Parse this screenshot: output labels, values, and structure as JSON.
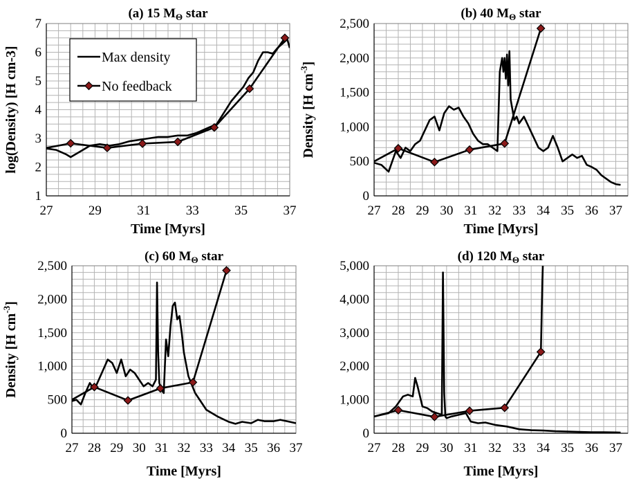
{
  "chart_data": [
    {
      "type": "line",
      "title": "(a) 15 MΘ star",
      "title_main": "(a) 15 M",
      "title_sub": "Θ",
      "title_tail": " star",
      "xlabel": "Time [Myrs]",
      "ylabel": "log(Density) [H cm-3]",
      "xlim": [
        27,
        37
      ],
      "ylim": [
        1,
        7
      ],
      "xticks": [
        "27",
        "29",
        "31",
        "33",
        "35",
        "37"
      ],
      "xtick_values": [
        27,
        29,
        31,
        33,
        35,
        37
      ],
      "yticks": [
        "1",
        "2",
        "3",
        "4",
        "5",
        "6",
        "7"
      ],
      "ytick_values": [
        1,
        2,
        3,
        4,
        5,
        6,
        7
      ],
      "xgrid_step": 0.5,
      "ygrid_step": 0.25,
      "legend": {
        "position": "top-left",
        "entries": [
          "Max density",
          "No feedback"
        ]
      },
      "series": [
        {
          "name": "Max density",
          "x": [
            27.0,
            27.4,
            27.8,
            28.0,
            28.4,
            28.8,
            29.2,
            29.6,
            30.0,
            30.4,
            30.8,
            31.2,
            31.6,
            32.0,
            32.4,
            32.8,
            33.2,
            33.6,
            34.0,
            34.3,
            34.6,
            34.9,
            35.1,
            35.3,
            35.5,
            35.7,
            35.9,
            36.1,
            36.3,
            36.5,
            36.7,
            36.9,
            37.0
          ],
          "y": [
            2.65,
            2.6,
            2.45,
            2.35,
            2.55,
            2.75,
            2.8,
            2.75,
            2.8,
            2.9,
            2.95,
            3.0,
            3.05,
            3.05,
            3.1,
            3.1,
            3.2,
            3.35,
            3.5,
            3.9,
            4.3,
            4.6,
            4.8,
            5.1,
            5.3,
            5.7,
            6.0,
            6.0,
            5.95,
            6.15,
            6.3,
            6.45,
            6.15
          ]
        },
        {
          "name": "No feedback",
          "x": [
            27.0,
            28.0,
            29.5,
            30.95,
            32.4,
            33.9,
            35.35,
            36.8
          ],
          "y": [
            2.67,
            2.83,
            2.67,
            2.82,
            2.88,
            3.38,
            4.73,
            6.5
          ],
          "marker_x": [
            28.0,
            29.5,
            30.95,
            32.4,
            33.9,
            35.35,
            36.8
          ],
          "marker_y": [
            2.83,
            2.67,
            2.82,
            2.88,
            3.38,
            4.73,
            6.5
          ]
        }
      ]
    },
    {
      "type": "line",
      "title": "(b) 40 MΘ star",
      "title_main": "(b) 40 M",
      "title_sub": "Θ",
      "title_tail": " star",
      "xlabel": "Time [Myrs]",
      "ylabel": "Density [H cm-3]",
      "ylabel_main": "Density [H cm",
      "ylabel_sup": "-3",
      "ylabel_tail": "]",
      "xlim": [
        27,
        37.5
      ],
      "ylim": [
        0,
        2500
      ],
      "xticks": [
        "27",
        "28",
        "29",
        "30",
        "31",
        "32",
        "33",
        "34",
        "35",
        "36",
        "37"
      ],
      "xtick_values": [
        27,
        28,
        29,
        30,
        31,
        32,
        33,
        34,
        35,
        36,
        37
      ],
      "yticks": [
        "0",
        "500",
        "1,000",
        "1,500",
        "2,000",
        "2,500"
      ],
      "ytick_values": [
        0,
        500,
        1000,
        1500,
        2000,
        2500
      ],
      "xgrid_step": 0.5,
      "ygrid_step": 100,
      "series": [
        {
          "name": "Max density",
          "x": [
            27.0,
            27.3,
            27.6,
            27.9,
            28.1,
            28.3,
            28.5,
            28.7,
            28.9,
            29.1,
            29.3,
            29.5,
            29.7,
            29.9,
            30.1,
            30.3,
            30.5,
            30.7,
            30.9,
            31.1,
            31.3,
            31.5,
            31.7,
            31.9,
            32.1,
            32.2,
            32.3,
            32.35,
            32.4,
            32.45,
            32.5,
            32.55,
            32.6,
            32.65,
            32.7,
            32.75,
            32.8,
            32.9,
            33.0,
            33.2,
            33.4,
            33.6,
            33.8,
            34.0,
            34.2,
            34.4,
            34.6,
            34.8,
            35.0,
            35.2,
            35.4,
            35.6,
            35.8,
            36.0,
            36.2,
            36.4,
            36.6,
            36.8,
            37.0,
            37.2
          ],
          "y": [
            480,
            450,
            350,
            650,
            550,
            700,
            650,
            750,
            800,
            950,
            1100,
            1150,
            950,
            1200,
            1300,
            1250,
            1280,
            1150,
            1050,
            900,
            800,
            750,
            750,
            700,
            650,
            1800,
            2000,
            1800,
            2000,
            1700,
            2050,
            1600,
            2100,
            1400,
            1300,
            1200,
            1100,
            1150,
            1050,
            1150,
            1000,
            850,
            700,
            650,
            700,
            870,
            700,
            500,
            550,
            600,
            550,
            580,
            450,
            420,
            380,
            300,
            250,
            200,
            170,
            160
          ]
        },
        {
          "name": "No feedback",
          "x": [
            27.0,
            28.0,
            29.5,
            30.95,
            32.4,
            33.9
          ],
          "y": [
            500,
            690,
            490,
            670,
            760,
            2430
          ],
          "marker_x": [
            28.0,
            29.5,
            30.95,
            32.4,
            33.9
          ],
          "marker_y": [
            690,
            490,
            670,
            760,
            2430
          ]
        }
      ]
    },
    {
      "type": "line",
      "title": "(c) 60 MΘ star",
      "title_main": "(c) 60 M",
      "title_sub": "Θ",
      "title_tail": " star",
      "xlabel": "Time [Myrs]",
      "ylabel": "Density [H cm-3]",
      "ylabel_main": "Density [H cm",
      "ylabel_sup": "-3",
      "ylabel_tail": "]",
      "xlim": [
        27,
        37
      ],
      "ylim": [
        0,
        2500
      ],
      "xticks": [
        "27",
        "28",
        "29",
        "30",
        "31",
        "32",
        "33",
        "34",
        "35",
        "36",
        "37"
      ],
      "xtick_values": [
        27,
        28,
        29,
        30,
        31,
        32,
        33,
        34,
        35,
        36,
        37
      ],
      "yticks": [
        "0",
        "500",
        "1,000",
        "1,500",
        "2,000",
        "2,500"
      ],
      "ytick_values": [
        0,
        500,
        1000,
        1500,
        2000,
        2500
      ],
      "xgrid_step": 0.5,
      "ygrid_step": 100,
      "series": [
        {
          "name": "Max density",
          "x": [
            27.0,
            27.2,
            27.4,
            27.6,
            27.8,
            28.0,
            28.2,
            28.4,
            28.6,
            28.8,
            29.0,
            29.2,
            29.4,
            29.6,
            29.8,
            30.0,
            30.2,
            30.4,
            30.6,
            30.75,
            30.8,
            30.85,
            30.9,
            31.0,
            31.1,
            31.2,
            31.3,
            31.4,
            31.5,
            31.6,
            31.7,
            31.8,
            31.9,
            32.0,
            32.2,
            32.5,
            32.8,
            33.0,
            33.5,
            34.0,
            34.3,
            34.6,
            35.0,
            35.3,
            35.6,
            36.0,
            36.3,
            36.6,
            37.0
          ],
          "y": [
            480,
            500,
            430,
            600,
            750,
            650,
            800,
            950,
            1100,
            1050,
            900,
            1100,
            850,
            950,
            900,
            800,
            700,
            750,
            700,
            800,
            2250,
            1200,
            750,
            650,
            600,
            1400,
            1150,
            1600,
            1900,
            1950,
            1700,
            1750,
            1500,
            1200,
            850,
            600,
            450,
            350,
            250,
            170,
            140,
            170,
            150,
            200,
            180,
            180,
            200,
            180,
            150
          ]
        },
        {
          "name": "No feedback",
          "x": [
            27.0,
            28.0,
            29.5,
            30.95,
            32.4,
            33.9
          ],
          "y": [
            500,
            690,
            490,
            670,
            760,
            2430
          ],
          "marker_x": [
            28.0,
            29.5,
            30.95,
            32.4,
            33.9
          ],
          "marker_y": [
            690,
            490,
            670,
            760,
            2430
          ]
        }
      ]
    },
    {
      "type": "line",
      "title": "(d) 120 MΘ star",
      "title_main": "(d) 120 M",
      "title_sub": "Θ",
      "title_tail": " star",
      "xlabel": "Time [Myrs]",
      "ylabel": "",
      "xlim": [
        27,
        37.5
      ],
      "ylim": [
        0,
        5000
      ],
      "xticks": [
        "27",
        "28",
        "29",
        "30",
        "31",
        "32",
        "33",
        "34",
        "35",
        "36",
        "37"
      ],
      "xtick_values": [
        27,
        28,
        29,
        30,
        31,
        32,
        33,
        34,
        35,
        36,
        37
      ],
      "yticks": [
        "0",
        "1,000",
        "2,000",
        "3,000",
        "4,000",
        "5,000"
      ],
      "ytick_values": [
        0,
        1000,
        2000,
        3000,
        4000,
        5000
      ],
      "xgrid_step": 0.5,
      "ygrid_step": 200,
      "series": [
        {
          "name": "Max density",
          "x": [
            27.0,
            27.3,
            27.6,
            27.9,
            28.2,
            28.4,
            28.6,
            28.7,
            28.8,
            29.0,
            29.2,
            29.4,
            29.6,
            29.8,
            29.85,
            29.9,
            29.95,
            30.0,
            30.2,
            30.5,
            30.8,
            31.0,
            31.3,
            31.6,
            32.0,
            32.5,
            33.0,
            33.5,
            34.0,
            34.5,
            35.0,
            35.5,
            36.0,
            36.5,
            37.0,
            37.2
          ],
          "y": [
            500,
            550,
            600,
            800,
            1100,
            1150,
            1100,
            1650,
            1400,
            800,
            750,
            650,
            600,
            550,
            4800,
            1200,
            500,
            450,
            500,
            550,
            600,
            350,
            300,
            320,
            250,
            200,
            120,
            90,
            80,
            60,
            50,
            40,
            30,
            30,
            25,
            20
          ]
        },
        {
          "name": "No feedback",
          "x": [
            27.0,
            28.0,
            29.5,
            30.95,
            32.4,
            33.9,
            33.92,
            33.94,
            33.96,
            33.98
          ],
          "y": [
            500,
            690,
            490,
            670,
            760,
            2430,
            3100,
            3800,
            4500,
            5000
          ],
          "marker_x": [
            28.0,
            29.5,
            30.95,
            32.4,
            33.9
          ],
          "marker_y": [
            690,
            490,
            670,
            760,
            2430
          ]
        }
      ]
    }
  ]
}
